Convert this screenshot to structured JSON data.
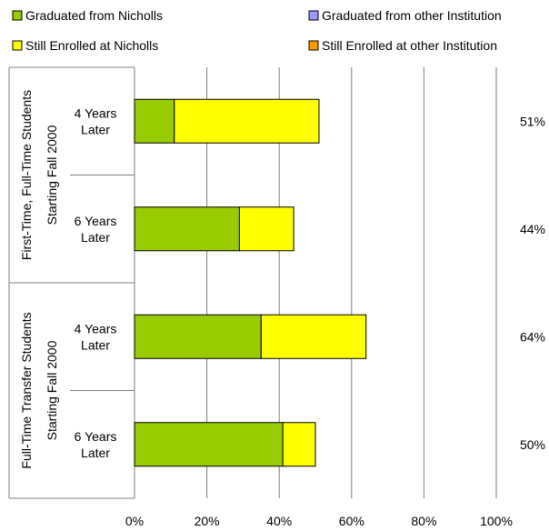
{
  "chart_data": {
    "type": "bar",
    "stacked": true,
    "orientation": "horizontal",
    "legend": {
      "placement": "top",
      "entries": [
        {
          "key": "nicholls_grad",
          "label": "Graduated from Nicholls",
          "color": "#99cc00"
        },
        {
          "key": "other_grad",
          "label": "Graduated from other Institution",
          "color": "#9999ff"
        },
        {
          "key": "nicholls_enrolled",
          "label": "Still Enrolled at Nicholls",
          "color": "#ffff00"
        },
        {
          "key": "other_enrolled",
          "label": "Still Enrolled at other Institution",
          "color": "#ff9900"
        }
      ]
    },
    "groups": [
      {
        "label": "First-Time, Full-Time Students",
        "sublabel": "Starting Fall 2000",
        "categories": [
          {
            "label_line1": "4 Years",
            "label_line2": "Later",
            "total_label": "51%"
          },
          {
            "label_line1": "6 Years",
            "label_line2": "Later",
            "total_label": "44%"
          }
        ]
      },
      {
        "label": "Full-Time Transfer Students",
        "sublabel": "Starting Fall 2000",
        "categories": [
          {
            "label_line1": "4 Years",
            "label_line2": "Later",
            "total_label": "64%"
          },
          {
            "label_line1": "6 Years",
            "label_line2": "Later",
            "total_label": "50%"
          }
        ]
      }
    ],
    "series": [
      {
        "key": "nicholls_grad",
        "name": "Graduated from Nicholls",
        "color": "#99cc00",
        "values": [
          11,
          29,
          35,
          41
        ]
      },
      {
        "key": "nicholls_enrolled",
        "name": "Still Enrolled at Nicholls",
        "color": "#ffff00",
        "values": [
          40,
          15,
          29,
          9
        ]
      }
    ],
    "xlim": [
      0,
      100
    ],
    "x_ticks": [
      "0%",
      "20%",
      "40%",
      "60%",
      "80%",
      "100%"
    ],
    "grid": true
  }
}
